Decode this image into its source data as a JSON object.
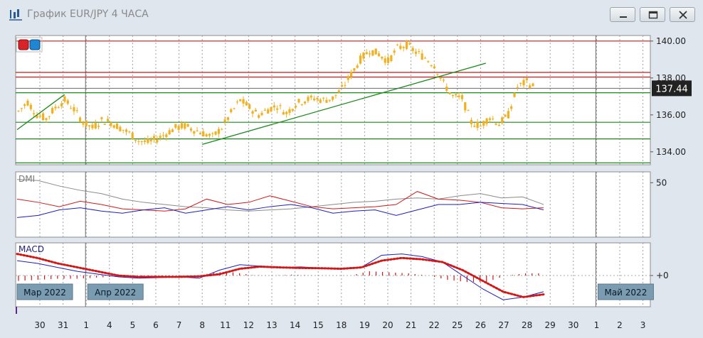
{
  "window": {
    "title": "График EUR/JPY  4 ЧАСА",
    "buttons": [
      "minimize",
      "maximize",
      "close"
    ],
    "icons": {
      "app": "chart-icon",
      "min": "minimize-icon",
      "max": "maximize-icon",
      "close": "close-icon"
    }
  },
  "price_panel": {
    "current_price_label": "137.44",
    "y_ticks": [
      "140.00",
      "138.00",
      "136.00",
      "134.00"
    ],
    "colors": {
      "candle": "#f0b020",
      "support": "#1a8a1a",
      "resistance": "#d01818",
      "trendline": "#1a8a1a",
      "price_line": "#6a6a6a",
      "price_tag_bg": "#222222"
    }
  },
  "dmi_panel": {
    "label": "DMI",
    "y_ticks": [
      "50"
    ],
    "colors": {
      "adx": "#8a8a8a",
      "plus_di": "#1f1fb8",
      "minus_di": "#d01818"
    }
  },
  "macd_panel": {
    "label": "MACD",
    "y_ticks": [
      "+0"
    ],
    "colors": {
      "macd": "#1f1fb8",
      "signal": "#d01818",
      "histogram": "#d01818"
    }
  },
  "month_labels": [
    "Мар 2022",
    "Апр 2022",
    "Май 2022"
  ],
  "x_axis": {
    "labels": [
      "30",
      "31",
      "1",
      "4",
      "5",
      "6",
      "7",
      "8",
      "11",
      "12",
      "13",
      "14",
      "15",
      "18",
      "19",
      "20",
      "21",
      "22",
      "25",
      "26",
      "27",
      "28",
      "29",
      "30",
      "1",
      "2",
      "3"
    ]
  },
  "chart_data": [
    {
      "type": "candlestick",
      "title": "",
      "series": [
        {
          "name": "EUR/JPY",
          "close_trace": [
            136.2,
            136.7,
            136.0,
            135.8,
            136.4,
            136.8,
            136.3,
            135.6,
            135.3,
            135.7,
            135.6,
            135.3,
            135.0,
            134.6,
            134.5,
            134.7,
            135.0,
            135.3,
            135.4,
            135.2,
            135.0,
            134.8,
            135.3,
            136.1,
            136.8,
            136.4,
            136.0,
            136.3,
            136.5,
            136.1,
            136.6,
            136.8,
            136.9,
            136.8,
            136.9,
            137.4,
            138.2,
            139.0,
            139.5,
            139.3,
            138.9,
            139.6,
            139.8,
            139.4,
            139.1,
            138.7,
            137.7,
            137.0,
            136.9,
            135.6,
            135.4,
            135.9,
            135.5,
            136.0,
            137.5,
            137.8,
            137.4
          ]
        }
      ],
      "ylim": [
        133.3,
        140.3
      ],
      "horizontal_levels": {
        "resistance": [
          140.0,
          138.3,
          138.05
        ],
        "support": [
          137.2,
          135.6,
          134.7,
          133.4
        ]
      },
      "trendlines": [
        {
          "from": [
            "30",
            135.2
          ],
          "to": [
            "31",
            137.1
          ]
        },
        {
          "from": [
            "8",
            134.4
          ],
          "to": [
            "25",
            138.8
          ]
        }
      ],
      "current_price": 137.44
    },
    {
      "type": "line",
      "title": "DMI",
      "series": [
        {
          "name": "",
          "values": [
            53,
            52,
            47,
            43,
            40,
            35,
            32,
            30,
            28,
            27,
            25,
            24,
            25,
            26,
            28,
            30,
            32,
            33,
            35,
            36,
            35,
            38,
            40,
            36,
            37,
            30
          ]
        },
        {
          "name": "",
          "values": [
            35,
            32,
            28,
            33,
            30,
            26,
            25,
            24,
            26,
            35,
            30,
            32,
            38,
            33,
            28,
            26,
            27,
            28,
            30,
            42,
            35,
            34,
            32,
            27,
            26,
            27
          ]
        },
        {
          "name": "",
          "values": [
            18,
            20,
            25,
            27,
            24,
            22,
            25,
            27,
            22,
            25,
            28,
            25,
            28,
            30,
            27,
            22,
            24,
            25,
            20,
            25,
            30,
            30,
            32,
            31,
            30,
            25
          ]
        }
      ],
      "y_ticks": [
        50
      ]
    },
    {
      "type": "line",
      "title": "MACD",
      "series": [
        {
          "name": "",
          "values": [
            0.55,
            0.45,
            0.3,
            0.15,
            0.05,
            -0.05,
            -0.1,
            -0.08,
            -0.05,
            -0.1,
            0.2,
            0.4,
            0.35,
            0.3,
            0.32,
            0.28,
            0.25,
            0.3,
            0.75,
            0.8,
            0.7,
            0.5,
            0.0,
            -0.5,
            -0.9,
            -0.8,
            -0.6
          ]
        },
        {
          "name": "",
          "values": [
            0.8,
            0.65,
            0.45,
            0.3,
            0.15,
            0.0,
            -0.05,
            -0.05,
            -0.05,
            -0.03,
            0.05,
            0.25,
            0.33,
            0.3,
            0.28,
            0.27,
            0.25,
            0.3,
            0.55,
            0.65,
            0.6,
            0.5,
            0.2,
            -0.2,
            -0.6,
            -0.8,
            -0.7
          ]
        }
      ],
      "y_ticks": [
        "+0"
      ]
    }
  ]
}
